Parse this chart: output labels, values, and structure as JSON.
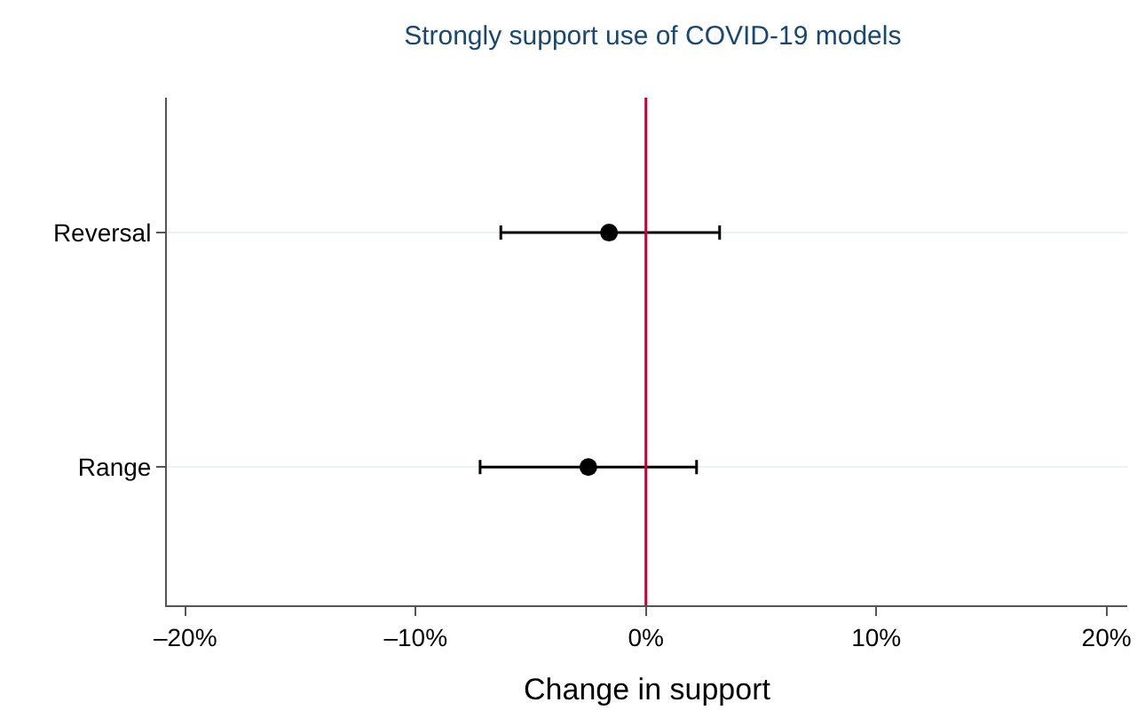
{
  "chart_data": {
    "type": "scatter",
    "title": "Strongly support use of COVID-19 models",
    "xlabel": "Change in support",
    "orientation": "horizontal",
    "categories": [
      "Reversal",
      "Range"
    ],
    "series": [
      {
        "color": "#000000",
        "values": [
          -1.6,
          -2.5
        ],
        "errors": [
          [
            -6.3,
            3.2
          ],
          [
            -7.2,
            2.2
          ]
        ]
      }
    ],
    "xlim": [
      -20.8,
      20.9
    ],
    "xticks": [
      {
        "value": -20,
        "label": "–20%"
      },
      {
        "value": -10,
        "label": "–10%"
      },
      {
        "value": 0,
        "label": "0%"
      },
      {
        "value": 10,
        "label": "10%"
      },
      {
        "value": 20,
        "label": "20%"
      }
    ],
    "ref_lines": [
      {
        "axis": "x",
        "value": 0,
        "color": "#c10534"
      }
    ],
    "grid": "y",
    "marker": "circle"
  }
}
